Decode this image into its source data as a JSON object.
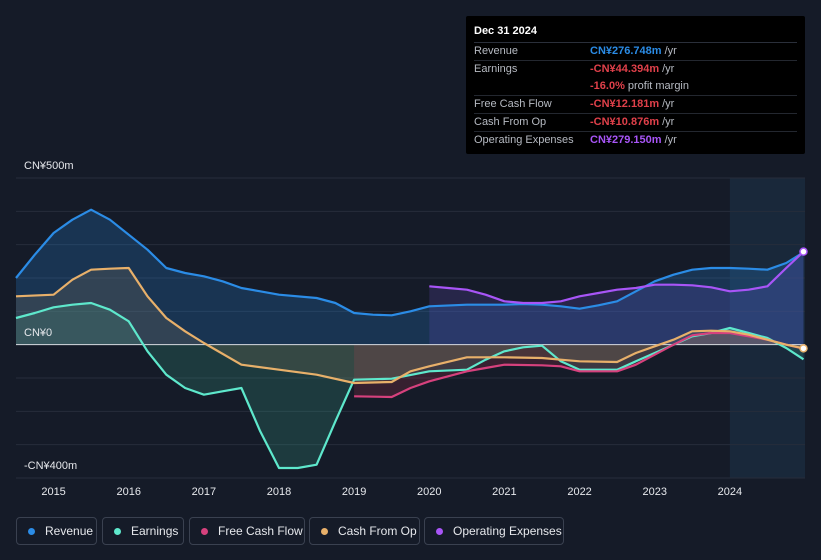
{
  "tooltip": {
    "date": "Dec 31 2024",
    "rows": [
      {
        "label": "Revenue",
        "value": "CN¥276.748m",
        "unit": "/yr",
        "color": "#2b8ce6"
      },
      {
        "label": "Earnings",
        "value": "-CN¥44.394m",
        "unit": "/yr",
        "color": "#e0404a"
      },
      {
        "label": "",
        "value": "-16.0%",
        "unit": "profit margin",
        "color": "#e0404a"
      },
      {
        "label": "Free Cash Flow",
        "value": "-CN¥12.181m",
        "unit": "/yr",
        "color": "#e0404a"
      },
      {
        "label": "Cash From Op",
        "value": "-CN¥10.876m",
        "unit": "/yr",
        "color": "#e0404a"
      },
      {
        "label": "Operating Expenses",
        "value": "CN¥279.150m",
        "unit": "/yr",
        "color": "#a855f7"
      }
    ]
  },
  "y_labels": {
    "top": "CN¥500m",
    "zero": "CN¥0",
    "bottom": "-CN¥400m"
  },
  "legend": [
    {
      "label": "Revenue",
      "color": "#2b8ce6"
    },
    {
      "label": "Earnings",
      "color": "#5ee8cc"
    },
    {
      "label": "Free Cash Flow",
      "color": "#d6417d"
    },
    {
      "label": "Cash From Op",
      "color": "#e8b06a"
    },
    {
      "label": "Operating Expenses",
      "color": "#a855f7"
    }
  ],
  "chart_data": {
    "type": "area",
    "title": "",
    "ylim": [
      -400,
      500
    ],
    "xlim": [
      2014.5,
      2025.0
    ],
    "x_ticks": [
      2015,
      2016,
      2017,
      2018,
      2019,
      2020,
      2021,
      2022,
      2023,
      2024
    ],
    "x_tick_labels": [
      "2015",
      "2016",
      "2017",
      "2018",
      "2019",
      "2020",
      "2021",
      "2022",
      "2023",
      "2024"
    ],
    "highlight_from": 2024.0,
    "series": [
      {
        "name": "Revenue",
        "color": "#2b8ce6",
        "fill": "#2b8ce6",
        "points": [
          [
            2014.5,
            200
          ],
          [
            2014.75,
            270
          ],
          [
            2015.0,
            335
          ],
          [
            2015.25,
            375
          ],
          [
            2015.5,
            405
          ],
          [
            2015.75,
            375
          ],
          [
            2016.0,
            330
          ],
          [
            2016.25,
            285
          ],
          [
            2016.5,
            230
          ],
          [
            2016.75,
            215
          ],
          [
            2017.0,
            205
          ],
          [
            2017.25,
            190
          ],
          [
            2017.5,
            170
          ],
          [
            2017.75,
            160
          ],
          [
            2018.0,
            150
          ],
          [
            2018.5,
            140
          ],
          [
            2018.75,
            125
          ],
          [
            2019.0,
            95
          ],
          [
            2019.25,
            90
          ],
          [
            2019.5,
            88
          ],
          [
            2019.75,
            100
          ],
          [
            2020.0,
            115
          ],
          [
            2020.5,
            120
          ],
          [
            2021.0,
            120
          ],
          [
            2021.25,
            122
          ],
          [
            2021.5,
            120
          ],
          [
            2021.75,
            115
          ],
          [
            2022.0,
            108
          ],
          [
            2022.25,
            118
          ],
          [
            2022.5,
            130
          ],
          [
            2022.75,
            160
          ],
          [
            2023.0,
            190
          ],
          [
            2023.25,
            210
          ],
          [
            2023.5,
            225
          ],
          [
            2023.75,
            230
          ],
          [
            2024.0,
            230
          ],
          [
            2024.25,
            228
          ],
          [
            2024.5,
            225
          ],
          [
            2024.75,
            245
          ],
          [
            2024.98,
            277
          ]
        ]
      },
      {
        "name": "Operating Expenses",
        "color": "#a855f7",
        "fill": "#6a4fc0",
        "points": [
          [
            2020.0,
            175
          ],
          [
            2020.25,
            170
          ],
          [
            2020.5,
            165
          ],
          [
            2020.75,
            150
          ],
          [
            2021.0,
            130
          ],
          [
            2021.25,
            125
          ],
          [
            2021.5,
            125
          ],
          [
            2021.75,
            130
          ],
          [
            2022.0,
            145
          ],
          [
            2022.25,
            155
          ],
          [
            2022.5,
            165
          ],
          [
            2022.75,
            170
          ],
          [
            2023.0,
            180
          ],
          [
            2023.25,
            180
          ],
          [
            2023.5,
            178
          ],
          [
            2023.75,
            172
          ],
          [
            2024.0,
            160
          ],
          [
            2024.25,
            165
          ],
          [
            2024.5,
            175
          ],
          [
            2024.75,
            230
          ],
          [
            2024.98,
            279
          ]
        ]
      },
      {
        "name": "Earnings",
        "color": "#5ee8cc",
        "fill": "#3aa88f",
        "points": [
          [
            2014.5,
            80
          ],
          [
            2014.75,
            95
          ],
          [
            2015.0,
            112
          ],
          [
            2015.25,
            120
          ],
          [
            2015.5,
            125
          ],
          [
            2015.75,
            105
          ],
          [
            2016.0,
            70
          ],
          [
            2016.25,
            -20
          ],
          [
            2016.5,
            -90
          ],
          [
            2016.75,
            -130
          ],
          [
            2017.0,
            -150
          ],
          [
            2017.25,
            -140
          ],
          [
            2017.5,
            -130
          ],
          [
            2017.75,
            -260
          ],
          [
            2018.0,
            -370
          ],
          [
            2018.25,
            -370
          ],
          [
            2018.5,
            -360
          ],
          [
            2018.75,
            -230
          ],
          [
            2019.0,
            -105
          ],
          [
            2019.5,
            -102
          ],
          [
            2020.0,
            -80
          ],
          [
            2020.5,
            -75
          ],
          [
            2020.75,
            -45
          ],
          [
            2021.0,
            -20
          ],
          [
            2021.25,
            -8
          ],
          [
            2021.5,
            -3
          ],
          [
            2021.75,
            -50
          ],
          [
            2022.0,
            -75
          ],
          [
            2022.25,
            -75
          ],
          [
            2022.5,
            -75
          ],
          [
            2022.75,
            -50
          ],
          [
            2023.0,
            -25
          ],
          [
            2023.25,
            0
          ],
          [
            2023.5,
            25
          ],
          [
            2023.75,
            35
          ],
          [
            2024.0,
            50
          ],
          [
            2024.25,
            35
          ],
          [
            2024.5,
            20
          ],
          [
            2024.75,
            -10
          ],
          [
            2024.98,
            -44
          ]
        ]
      },
      {
        "name": "Free Cash Flow",
        "color": "#d6417d",
        "fill": "#b3344f",
        "points": [
          [
            2019.0,
            -155
          ],
          [
            2019.5,
            -157
          ],
          [
            2019.75,
            -130
          ],
          [
            2020.0,
            -110
          ],
          [
            2020.5,
            -80
          ],
          [
            2020.75,
            -70
          ],
          [
            2021.0,
            -60
          ],
          [
            2021.5,
            -62
          ],
          [
            2021.75,
            -65
          ],
          [
            2022.0,
            -80
          ],
          [
            2022.5,
            -80
          ],
          [
            2022.75,
            -60
          ],
          [
            2023.0,
            -30
          ],
          [
            2023.25,
            0
          ],
          [
            2023.5,
            28
          ],
          [
            2023.75,
            35
          ],
          [
            2024.0,
            35
          ],
          [
            2024.25,
            25
          ],
          [
            2024.5,
            15
          ],
          [
            2024.75,
            0
          ],
          [
            2024.98,
            -12
          ]
        ]
      },
      {
        "name": "Cash From Op",
        "color": "#e8b06a",
        "fill": "#8c7a5a",
        "points": [
          [
            2014.5,
            145
          ],
          [
            2015.0,
            150
          ],
          [
            2015.25,
            195
          ],
          [
            2015.5,
            225
          ],
          [
            2015.75,
            228
          ],
          [
            2016.0,
            230
          ],
          [
            2016.25,
            145
          ],
          [
            2016.5,
            80
          ],
          [
            2016.75,
            40
          ],
          [
            2017.0,
            5
          ],
          [
            2017.5,
            -60
          ],
          [
            2018.0,
            -75
          ],
          [
            2018.5,
            -90
          ],
          [
            2019.0,
            -115
          ],
          [
            2019.5,
            -112
          ],
          [
            2019.75,
            -80
          ],
          [
            2020.0,
            -65
          ],
          [
            2020.5,
            -38
          ],
          [
            2021.0,
            -38
          ],
          [
            2021.5,
            -40
          ],
          [
            2021.75,
            -45
          ],
          [
            2022.0,
            -50
          ],
          [
            2022.5,
            -52
          ],
          [
            2022.75,
            -25
          ],
          [
            2023.0,
            -5
          ],
          [
            2023.25,
            15
          ],
          [
            2023.5,
            40
          ],
          [
            2023.75,
            42
          ],
          [
            2024.0,
            40
          ],
          [
            2024.25,
            30
          ],
          [
            2024.5,
            15
          ],
          [
            2024.75,
            0
          ],
          [
            2024.98,
            -11
          ]
        ]
      }
    ]
  }
}
